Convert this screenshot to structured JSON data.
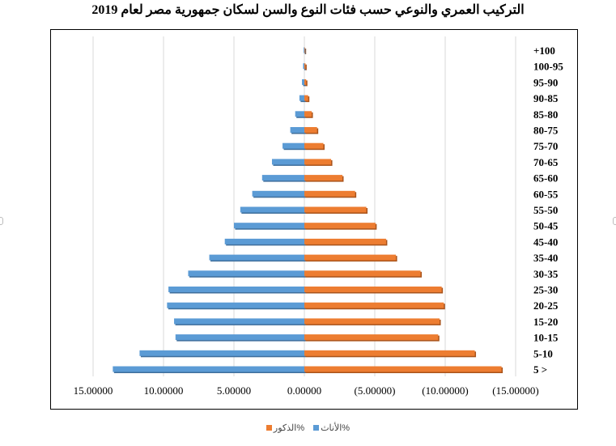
{
  "chart_data": {
    "type": "bar",
    "orientation": "horizontal",
    "title": "التركيب العمري والنوعي حسب فئات النوع والسن لسكان جمهورية مصر لعام 2019",
    "categories": [
      "+100",
      "100-95",
      "95-90",
      "90-85",
      "85-80",
      "80-75",
      "75-70",
      "70-65",
      "65-60",
      "60-55",
      "55-50",
      "50-45",
      "45-40",
      "35-40",
      "30-35",
      "25-30",
      "20-25",
      "15-20",
      "10-15",
      "5-10",
      "5 >"
    ],
    "series": [
      {
        "name": "الأناث%",
        "color": "#5b9bd5",
        "side": "left",
        "values": [
          0.05,
          0.09,
          0.17,
          0.35,
          0.65,
          1.0,
          1.55,
          2.3,
          3.0,
          3.7,
          4.55,
          5.0,
          5.65,
          6.75,
          8.25,
          9.65,
          9.75,
          9.25,
          9.15,
          11.7,
          13.6
        ]
      },
      {
        "name": "الذكور%",
        "color": "#ed7d31",
        "side": "right",
        "values": [
          0.04,
          0.08,
          0.13,
          0.27,
          0.52,
          0.9,
          1.35,
          1.9,
          2.7,
          3.6,
          4.4,
          5.05,
          5.8,
          6.5,
          8.25,
          9.75,
          9.9,
          9.6,
          9.5,
          12.1,
          14.0
        ]
      }
    ],
    "x_ticks": [
      "15.00000",
      "10.00000",
      "5.00000",
      "0.00000",
      "(5.00000)",
      "(10.00000)",
      "(15.00000)"
    ],
    "xlim": [
      -15,
      15
    ],
    "gridlines": "vertical",
    "legend_position": "bottom"
  }
}
